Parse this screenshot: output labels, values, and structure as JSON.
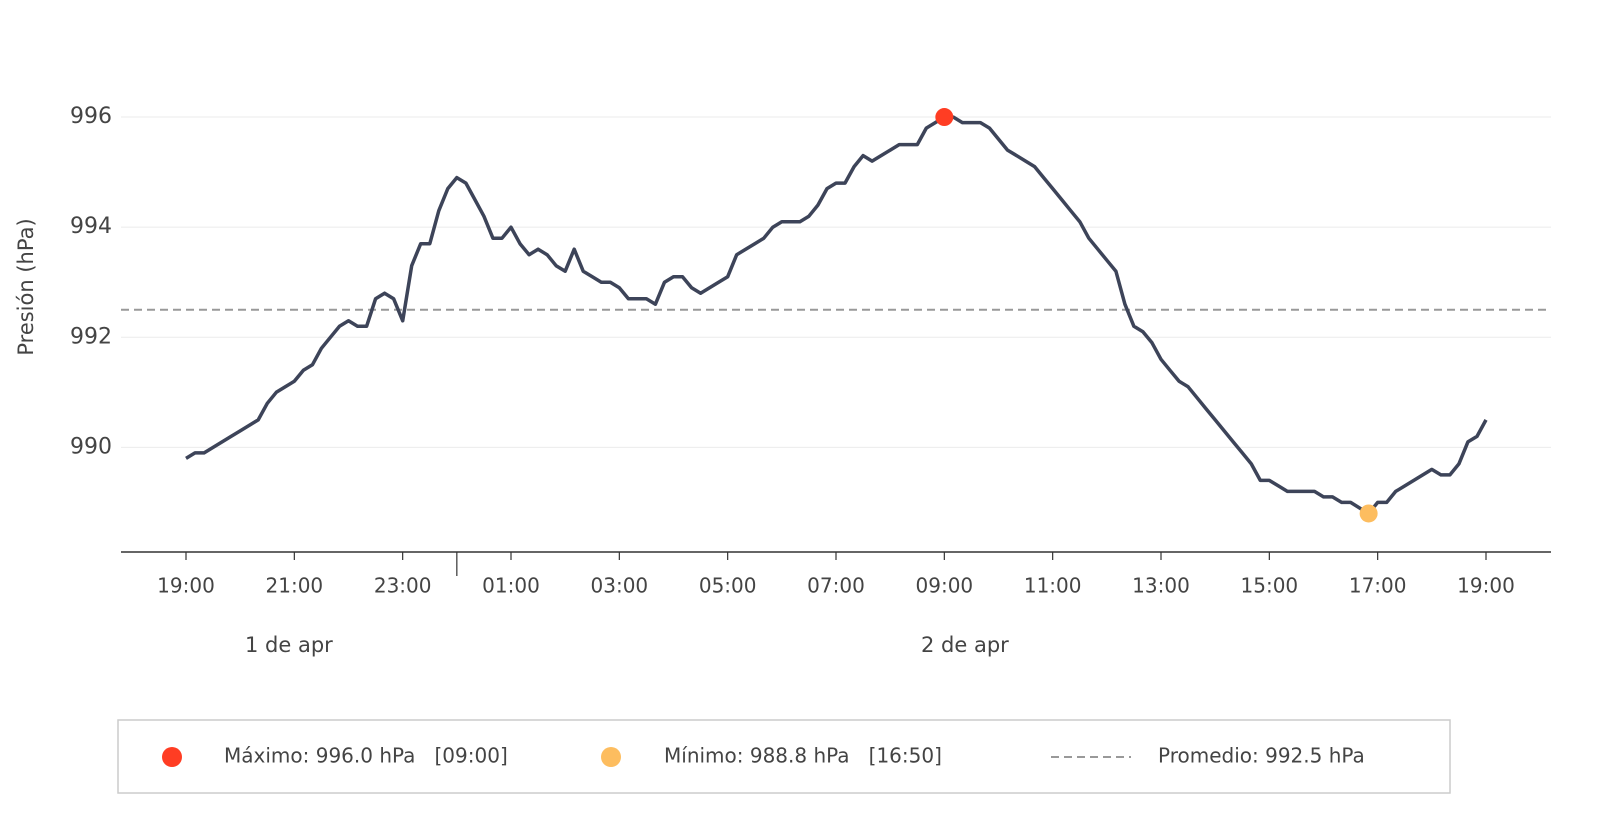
{
  "chart_data": {
    "type": "line",
    "y_label": "Presión (hPa)",
    "x": [
      "19:00",
      "19:10",
      "19:20",
      "19:30",
      "19:40",
      "19:50",
      "20:00",
      "20:10",
      "20:20",
      "20:30",
      "20:40",
      "20:50",
      "21:00",
      "21:10",
      "21:20",
      "21:30",
      "21:40",
      "21:50",
      "22:00",
      "22:10",
      "22:20",
      "22:30",
      "22:40",
      "22:50",
      "23:00",
      "23:10",
      "23:20",
      "23:30",
      "23:40",
      "23:50",
      "00:00",
      "00:10",
      "00:20",
      "00:30",
      "00:40",
      "00:50",
      "01:00",
      "01:10",
      "01:20",
      "01:30",
      "01:40",
      "01:50",
      "02:00",
      "02:10",
      "02:20",
      "02:30",
      "02:40",
      "02:50",
      "03:00",
      "03:10",
      "03:20",
      "03:30",
      "03:40",
      "03:50",
      "04:00",
      "04:10",
      "04:20",
      "04:30",
      "04:40",
      "04:50",
      "05:00",
      "05:10",
      "05:20",
      "05:30",
      "05:40",
      "05:50",
      "06:00",
      "06:10",
      "06:20",
      "06:30",
      "06:40",
      "06:50",
      "07:00",
      "07:10",
      "07:20",
      "07:30",
      "07:40",
      "07:50",
      "08:00",
      "08:10",
      "08:20",
      "08:30",
      "08:40",
      "08:50",
      "09:00",
      "09:10",
      "09:20",
      "09:30",
      "09:40",
      "09:50",
      "10:00",
      "10:10",
      "10:20",
      "10:30",
      "10:40",
      "10:50",
      "11:00",
      "11:10",
      "11:20",
      "11:30",
      "11:40",
      "11:50",
      "12:00",
      "12:10",
      "12:20",
      "12:30",
      "12:40",
      "12:50",
      "13:00",
      "13:10",
      "13:20",
      "13:30",
      "13:40",
      "13:50",
      "14:00",
      "14:10",
      "14:20",
      "14:30",
      "14:40",
      "14:50",
      "15:00",
      "15:10",
      "15:20",
      "15:30",
      "15:40",
      "15:50",
      "16:00",
      "16:10",
      "16:20",
      "16:30",
      "16:40",
      "16:50",
      "17:00",
      "17:10",
      "17:20",
      "17:30",
      "17:40",
      "17:50",
      "18:00",
      "18:10",
      "18:20",
      "18:30",
      "18:40",
      "18:50",
      "19:00"
    ],
    "series": [
      {
        "color": "#3d4459",
        "values": [
          989.8,
          989.9,
          989.9,
          990.0,
          990.1,
          990.2,
          990.3,
          990.4,
          990.5,
          990.8,
          991.0,
          991.1,
          991.2,
          991.4,
          991.5,
          991.8,
          992.0,
          992.2,
          992.3,
          992.2,
          992.2,
          992.7,
          992.8,
          992.7,
          992.3,
          993.3,
          993.7,
          993.7,
          994.3,
          994.7,
          994.9,
          994.8,
          994.5,
          994.2,
          993.8,
          993.8,
          994.0,
          993.7,
          993.5,
          993.6,
          993.5,
          993.3,
          993.2,
          993.6,
          993.2,
          993.1,
          993.0,
          993.0,
          992.9,
          992.7,
          992.7,
          992.7,
          992.6,
          993.0,
          993.1,
          993.1,
          992.9,
          992.8,
          992.9,
          993.0,
          993.1,
          993.5,
          993.6,
          993.7,
          993.8,
          994.0,
          994.1,
          994.1,
          994.1,
          994.2,
          994.4,
          994.7,
          994.8,
          994.8,
          995.1,
          995.3,
          995.2,
          995.3,
          995.4,
          995.5,
          995.5,
          995.5,
          995.8,
          995.9,
          996.0,
          996.0,
          995.9,
          995.9,
          995.9,
          995.8,
          995.6,
          995.4,
          995.3,
          995.2,
          995.1,
          994.9,
          994.7,
          994.5,
          994.3,
          994.1,
          993.8,
          993.6,
          993.4,
          993.2,
          992.6,
          992.2,
          992.1,
          991.9,
          991.6,
          991.4,
          991.2,
          991.1,
          990.9,
          990.7,
          990.5,
          990.3,
          990.1,
          989.9,
          989.7,
          989.4,
          989.4,
          989.3,
          989.2,
          989.2,
          989.2,
          989.2,
          989.1,
          989.1,
          989.0,
          989.0,
          988.9,
          988.8,
          989.0,
          989.0,
          989.2,
          989.3,
          989.4,
          989.5,
          989.6,
          989.5,
          989.5,
          989.7,
          990.1,
          990.2,
          990.5
        ]
      }
    ],
    "xticks": [
      "19:00",
      "21:00",
      "23:00",
      "01:00",
      "03:00",
      "05:00",
      "07:00",
      "09:00",
      "11:00",
      "13:00",
      "15:00",
      "17:00",
      "19:00"
    ],
    "days": [
      "1 de apr",
      "2 de apr"
    ],
    "day_break": "00:00",
    "ylim": [
      988.1,
      997
    ],
    "yticks": [
      990,
      992,
      994,
      996
    ],
    "grid": true,
    "max": {
      "x": "09:00",
      "value": 996.0,
      "color": "#ff3d23",
      "label": "Máximo: 996.0 hPa   [09:00]"
    },
    "min": {
      "x": "16:50",
      "value": 988.8,
      "color": "#fdbd5f",
      "label": "Mínimo: 988.8 hPa   [16:50]"
    },
    "mean": {
      "value": 992.5,
      "color": "#999999",
      "label": "Promedio: 992.5 hPa"
    }
  }
}
